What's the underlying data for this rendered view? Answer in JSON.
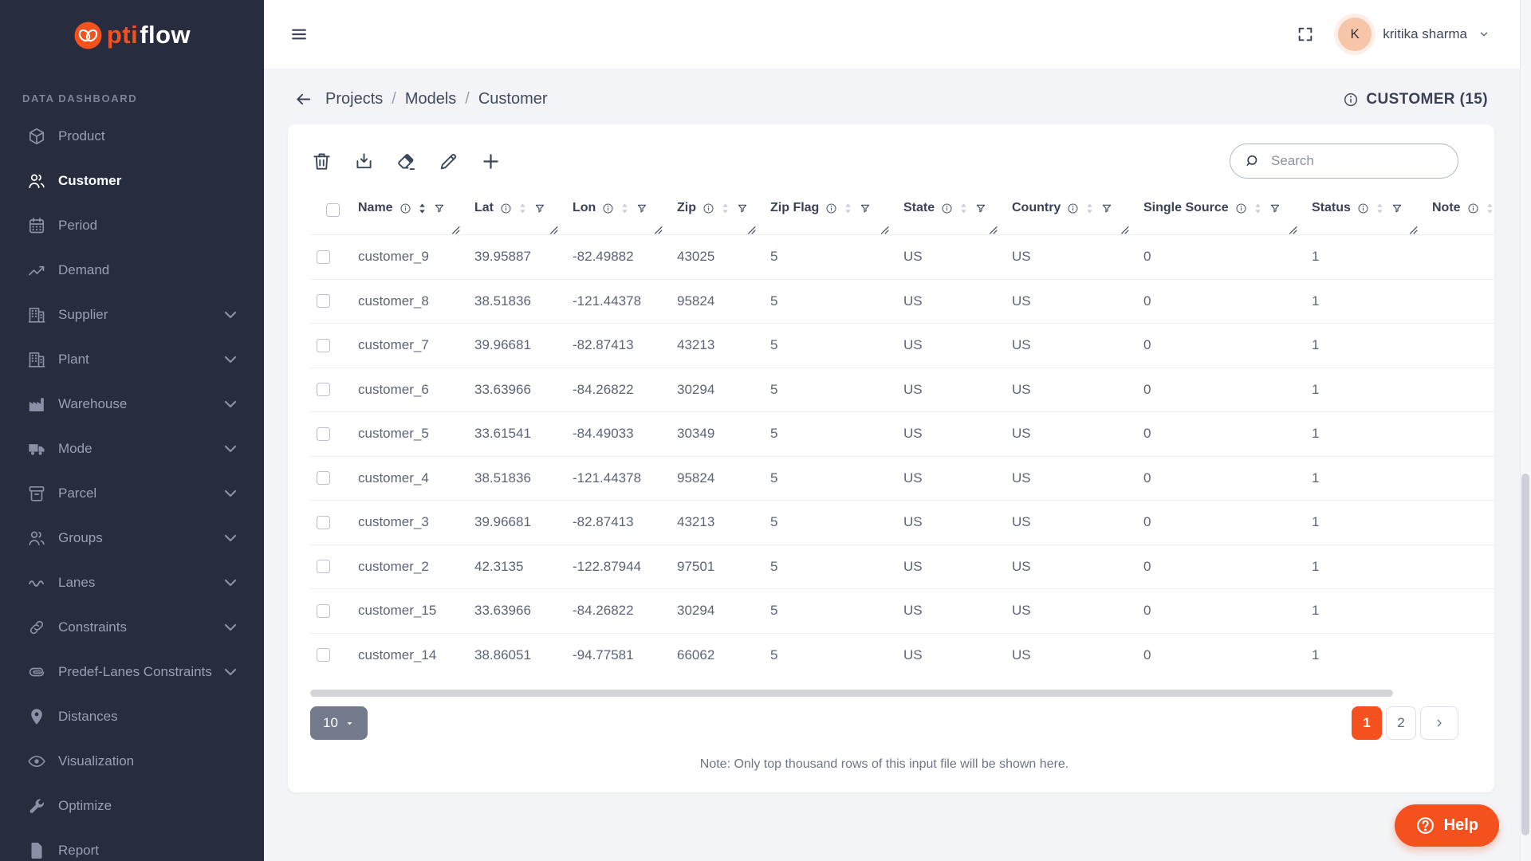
{
  "brand": {
    "logo_orange": "pti",
    "logo_white": "flow"
  },
  "sidebar": {
    "section_label": "DATA DASHBOARD",
    "items": [
      {
        "label": "Product",
        "icon": "box"
      },
      {
        "label": "Customer",
        "icon": "users",
        "active": true
      },
      {
        "label": "Period",
        "icon": "calendar"
      },
      {
        "label": "Demand",
        "icon": "trend"
      },
      {
        "label": "Supplier",
        "icon": "building",
        "expandable": true
      },
      {
        "label": "Plant",
        "icon": "building",
        "expandable": true
      },
      {
        "label": "Warehouse",
        "icon": "factory",
        "expandable": true
      },
      {
        "label": "Mode",
        "icon": "truck",
        "expandable": true
      },
      {
        "label": "Parcel",
        "icon": "archive",
        "expandable": true
      },
      {
        "label": "Groups",
        "icon": "users",
        "expandable": true
      },
      {
        "label": "Lanes",
        "icon": "wave",
        "expandable": true
      },
      {
        "label": "Constraints",
        "icon": "link",
        "expandable": true
      },
      {
        "label": "Predef-Lanes Constraints",
        "icon": "paperclip",
        "expandable": true
      },
      {
        "label": "Distances",
        "icon": "pin"
      },
      {
        "label": "Visualization",
        "icon": "eye"
      },
      {
        "label": "Optimize",
        "icon": "wrench"
      },
      {
        "label": "Report",
        "icon": "file"
      }
    ]
  },
  "topbar": {
    "user_initial": "K",
    "user_name": "kritika sharma"
  },
  "breadcrumb": {
    "separator": "/",
    "items": [
      "Projects",
      "Models",
      "Customer"
    ]
  },
  "page_header": {
    "title_badge": "CUSTOMER (15)"
  },
  "toolbar": {
    "actions": [
      "delete",
      "download",
      "erase",
      "edit",
      "add"
    ],
    "search_placeholder": "Search"
  },
  "table": {
    "columns": [
      {
        "label": "Name",
        "key": "name",
        "sorted": true
      },
      {
        "label": "Lat",
        "key": "lat"
      },
      {
        "label": "Lon",
        "key": "lon"
      },
      {
        "label": "Zip",
        "key": "zip"
      },
      {
        "label": "Zip Flag",
        "key": "zip_flag"
      },
      {
        "label": "State",
        "key": "state"
      },
      {
        "label": "Country",
        "key": "country"
      },
      {
        "label": "Single Source",
        "key": "single_source"
      },
      {
        "label": "Status",
        "key": "status"
      },
      {
        "label": "Note",
        "key": "note"
      }
    ],
    "rows": [
      {
        "name": "customer_9",
        "lat": "39.95887",
        "lon": "-82.49882",
        "zip": "43025",
        "zip_flag": "5",
        "state": "US",
        "country": "US",
        "single_source": "0",
        "status": "1",
        "note": ""
      },
      {
        "name": "customer_8",
        "lat": "38.51836",
        "lon": "-121.44378",
        "zip": "95824",
        "zip_flag": "5",
        "state": "US",
        "country": "US",
        "single_source": "0",
        "status": "1",
        "note": ""
      },
      {
        "name": "customer_7",
        "lat": "39.96681",
        "lon": "-82.87413",
        "zip": "43213",
        "zip_flag": "5",
        "state": "US",
        "country": "US",
        "single_source": "0",
        "status": "1",
        "note": ""
      },
      {
        "name": "customer_6",
        "lat": "33.63966",
        "lon": "-84.26822",
        "zip": "30294",
        "zip_flag": "5",
        "state": "US",
        "country": "US",
        "single_source": "0",
        "status": "1",
        "note": ""
      },
      {
        "name": "customer_5",
        "lat": "33.61541",
        "lon": "-84.49033",
        "zip": "30349",
        "zip_flag": "5",
        "state": "US",
        "country": "US",
        "single_source": "0",
        "status": "1",
        "note": ""
      },
      {
        "name": "customer_4",
        "lat": "38.51836",
        "lon": "-121.44378",
        "zip": "95824",
        "zip_flag": "5",
        "state": "US",
        "country": "US",
        "single_source": "0",
        "status": "1",
        "note": ""
      },
      {
        "name": "customer_3",
        "lat": "39.96681",
        "lon": "-82.87413",
        "zip": "43213",
        "zip_flag": "5",
        "state": "US",
        "country": "US",
        "single_source": "0",
        "status": "1",
        "note": ""
      },
      {
        "name": "customer_2",
        "lat": "42.3135",
        "lon": "-122.87944",
        "zip": "97501",
        "zip_flag": "5",
        "state": "US",
        "country": "US",
        "single_source": "0",
        "status": "1",
        "note": ""
      },
      {
        "name": "customer_15",
        "lat": "33.63966",
        "lon": "-84.26822",
        "zip": "30294",
        "zip_flag": "5",
        "state": "US",
        "country": "US",
        "single_source": "0",
        "status": "1",
        "note": ""
      },
      {
        "name": "customer_14",
        "lat": "38.86051",
        "lon": "-94.77581",
        "zip": "66062",
        "zip_flag": "5",
        "state": "US",
        "country": "US",
        "single_source": "0",
        "status": "1",
        "note": ""
      }
    ]
  },
  "pagination": {
    "page_size": "10",
    "pages": [
      {
        "label": "1",
        "active": true
      },
      {
        "label": "2",
        "active": false
      }
    ]
  },
  "footer_note": "Note: Only top thousand rows of this input file will be shown here.",
  "help_button": {
    "label": "Help"
  },
  "colors": {
    "accent": "#f4511e",
    "sidebar_bg": "#272d3f",
    "avatar_bg": "#f7c6a9"
  }
}
